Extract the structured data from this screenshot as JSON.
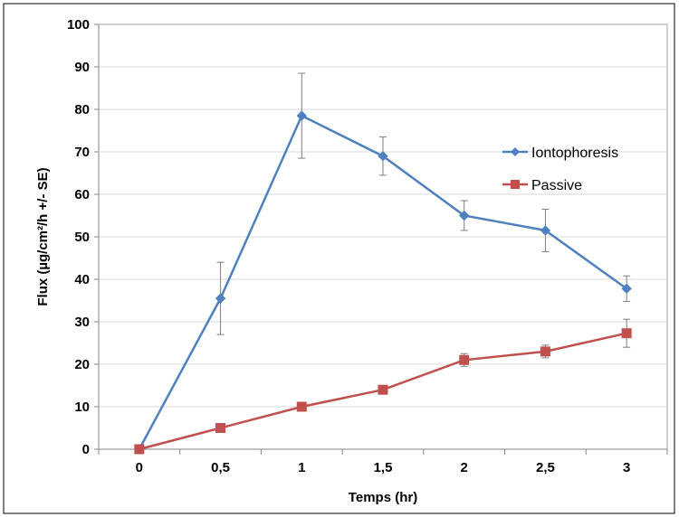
{
  "chart_data": {
    "type": "line",
    "title": "",
    "xlabel": "Temps (hr)",
    "ylabel": "Flux (µg/cm²/h +/- SE)",
    "categories": [
      "0",
      "0,5",
      "1",
      "1,5",
      "2",
      "2,5",
      "3"
    ],
    "ylim": [
      0,
      100
    ],
    "yticks": [
      "0",
      "10",
      "20",
      "30",
      "40",
      "50",
      "60",
      "70",
      "80",
      "90",
      "100"
    ],
    "grid": "horizontal",
    "legend_position": "right",
    "series": [
      {
        "name": "Iontophoresis",
        "color": "#4f81bd",
        "marker": "diamond",
        "values": [
          0,
          35.5,
          78.5,
          69,
          55,
          51.5,
          37.8
        ],
        "error": [
          0,
          8.5,
          10,
          4.5,
          3.5,
          5,
          3
        ]
      },
      {
        "name": "Passive",
        "color": "#c0504d",
        "marker": "square",
        "values": [
          0,
          5,
          10,
          14,
          21,
          23,
          27.3
        ],
        "error": [
          0,
          0,
          0,
          0,
          1.5,
          1.5,
          3.3
        ]
      }
    ]
  }
}
